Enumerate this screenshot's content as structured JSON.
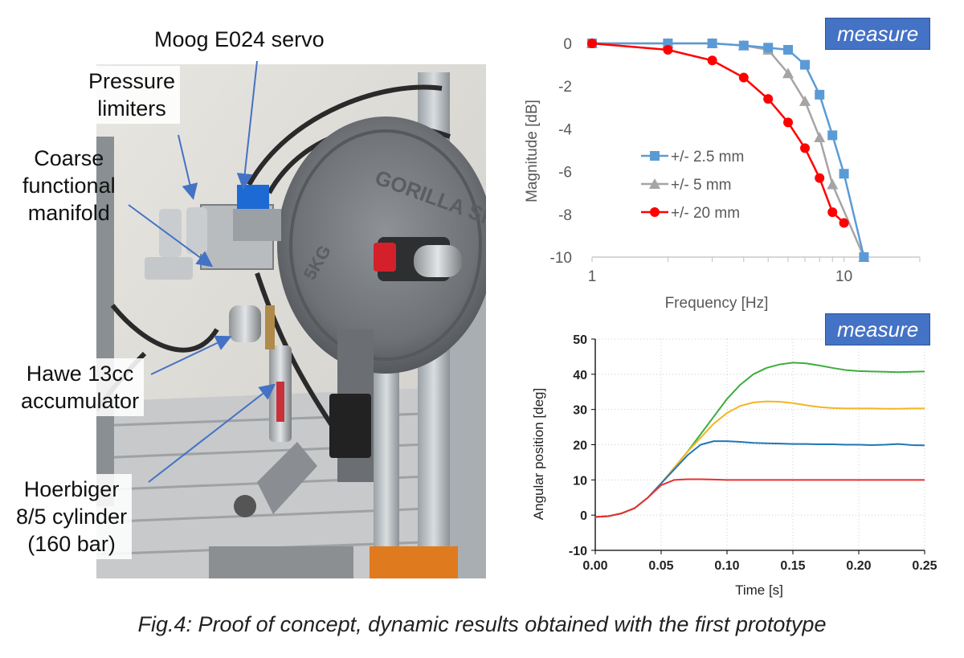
{
  "photo": {
    "labels": {
      "moog": [
        "Moog E024 servo"
      ],
      "pressure": [
        "Pressure",
        "limiters"
      ],
      "manifold": [
        "Coarse",
        "functional",
        "manifold"
      ],
      "hawe": [
        "Hawe 13cc",
        "accumulator"
      ],
      "hoerbiger": [
        "Hoerbiger",
        "8/5 cylinder",
        "(160 bar)"
      ]
    },
    "plate_text": {
      "brand": "GORILLA SPORTS",
      "weight": "5KG"
    }
  },
  "chart_data": [
    {
      "type": "line",
      "tag": "measure",
      "title": "",
      "xlabel": "Frequency [Hz]",
      "ylabel": "Magnitude [dB]",
      "xscale": "log",
      "xlim": [
        1,
        20
      ],
      "ylim": [
        -10,
        0
      ],
      "xticks": [
        1,
        10
      ],
      "xtick_labels": [
        "1",
        "10"
      ],
      "yticks": [
        0,
        -2,
        -4,
        -6,
        -8,
        -10
      ],
      "ytick_labels": [
        "0",
        "-2",
        "-4",
        "-6",
        "-8",
        "-10"
      ],
      "legend_position": "center-left",
      "series": [
        {
          "name": "+/- 2.5 mm",
          "color": "#5b9bd5",
          "marker": "square",
          "x": [
            1,
            2,
            3,
            4,
            5,
            6,
            7,
            8,
            9,
            10,
            12
          ],
          "y": [
            0,
            0,
            0,
            -0.1,
            -0.2,
            -0.3,
            -1.0,
            -2.4,
            -4.3,
            -6.1,
            -10.0
          ]
        },
        {
          "name": "+/- 5 mm",
          "color": "#a5a5a5",
          "marker": "triangle",
          "x": [
            1,
            2,
            3,
            4,
            5,
            6,
            7,
            8,
            9,
            12
          ],
          "y": [
            0,
            0,
            0,
            -0.1,
            -0.3,
            -1.4,
            -2.7,
            -4.4,
            -6.6,
            -10.0
          ]
        },
        {
          "name": "+/- 20 mm",
          "color": "#ff0000",
          "marker": "circle",
          "x": [
            1,
            2,
            3,
            4,
            5,
            6,
            7,
            8,
            9,
            10
          ],
          "y": [
            0,
            -0.3,
            -0.8,
            -1.6,
            -2.6,
            -3.7,
            -4.9,
            -6.3,
            -7.9,
            -8.4
          ]
        }
      ]
    },
    {
      "type": "line",
      "tag": "measure",
      "title": "",
      "xlabel": "Time [s]",
      "ylabel": "Angular position [deg]",
      "xlim": [
        0,
        0.25
      ],
      "ylim": [
        -10,
        50
      ],
      "xticks": [
        0,
        0.05,
        0.1,
        0.15,
        0.2,
        0.25
      ],
      "xtick_labels": [
        "0.00",
        "0.05",
        "0.10",
        "0.15",
        "0.20",
        "0.25"
      ],
      "yticks": [
        -10,
        0,
        10,
        20,
        30,
        40,
        50
      ],
      "ytick_labels": [
        "-10",
        "0",
        "10",
        "20",
        "30",
        "40",
        "50"
      ],
      "grid": true,
      "series": [
        {
          "name": "",
          "color": "#3cae3c",
          "x": [
            0,
            0.01,
            0.02,
            0.03,
            0.04,
            0.05,
            0.06,
            0.07,
            0.08,
            0.09,
            0.1,
            0.11,
            0.12,
            0.13,
            0.14,
            0.15,
            0.16,
            0.17,
            0.18,
            0.19,
            0.2,
            0.21,
            0.22,
            0.23,
            0.24,
            0.25
          ],
          "y": [
            -0.5,
            -0.3,
            0.5,
            2,
            5,
            9,
            13.5,
            18,
            23,
            28,
            33,
            37,
            40,
            41.8,
            42.8,
            43.3,
            43.1,
            42.5,
            41.8,
            41.2,
            40.9,
            40.8,
            40.7,
            40.6,
            40.7,
            40.8
          ]
        },
        {
          "name": "",
          "color": "#f5b523",
          "x": [
            0,
            0.01,
            0.02,
            0.03,
            0.04,
            0.05,
            0.06,
            0.07,
            0.08,
            0.09,
            0.1,
            0.11,
            0.12,
            0.13,
            0.14,
            0.15,
            0.16,
            0.17,
            0.18,
            0.19,
            0.2,
            0.21,
            0.22,
            0.23,
            0.24,
            0.25
          ],
          "y": [
            -0.5,
            -0.3,
            0.5,
            2,
            5,
            9,
            13.5,
            18,
            22,
            26,
            29,
            31,
            32,
            32.3,
            32.2,
            31.8,
            31.2,
            30.7,
            30.4,
            30.3,
            30.3,
            30.3,
            30.2,
            30.2,
            30.3,
            30.3
          ]
        },
        {
          "name": "",
          "color": "#1f77b4",
          "x": [
            0,
            0.01,
            0.02,
            0.03,
            0.04,
            0.05,
            0.06,
            0.07,
            0.08,
            0.09,
            0.1,
            0.11,
            0.12,
            0.13,
            0.14,
            0.15,
            0.16,
            0.17,
            0.18,
            0.19,
            0.2,
            0.21,
            0.22,
            0.23,
            0.24,
            0.25
          ],
          "y": [
            -0.5,
            -0.3,
            0.5,
            2,
            5,
            9,
            13,
            17,
            20,
            21,
            21,
            20.8,
            20.5,
            20.4,
            20.3,
            20.2,
            20.2,
            20.1,
            20.1,
            20.0,
            20.0,
            19.9,
            20.0,
            20.2,
            19.9,
            19.8
          ]
        },
        {
          "name": "",
          "color": "#e8312f",
          "x": [
            0,
            0.01,
            0.02,
            0.03,
            0.04,
            0.05,
            0.06,
            0.07,
            0.08,
            0.09,
            0.1,
            0.11,
            0.12,
            0.13,
            0.14,
            0.15,
            0.16,
            0.17,
            0.18,
            0.19,
            0.2,
            0.21,
            0.22,
            0.23,
            0.24,
            0.25
          ],
          "y": [
            -0.5,
            -0.3,
            0.5,
            2,
            5,
            8.5,
            10,
            10.2,
            10.2,
            10.1,
            10.0,
            10.0,
            10.0,
            10.0,
            10.0,
            10.0,
            10.0,
            10.0,
            10.0,
            10.0,
            10.0,
            10.0,
            10.0,
            10.0,
            10.0,
            10.0
          ]
        }
      ]
    }
  ],
  "caption": "Fig.4: Proof of concept, dynamic results obtained with the first prototype"
}
